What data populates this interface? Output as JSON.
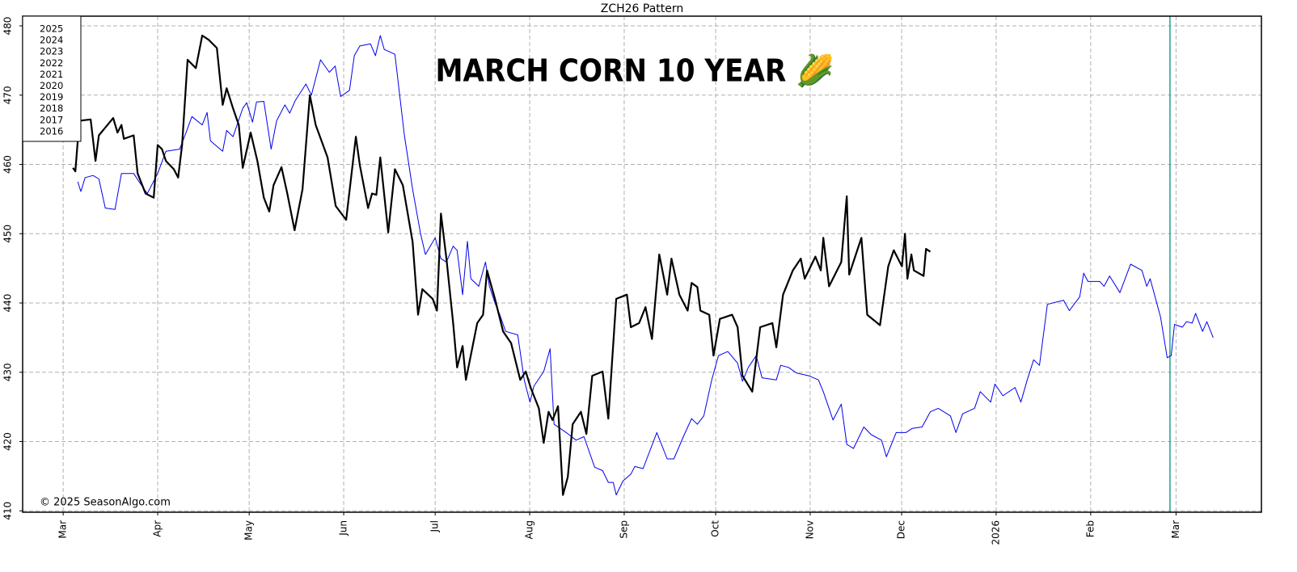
{
  "chart_data": {
    "type": "line",
    "title": "ZCH26  Pattern",
    "overlay_title": "MARCH CORN 10 YEAR 🌽",
    "copyright": "© 2025 SeasonAlgo.com",
    "legend": [
      "2025",
      "2024",
      "2023",
      "2022",
      "2021",
      "2020",
      "2019",
      "2018",
      "2017",
      "2016"
    ],
    "legend_color": "#0000cc",
    "grid": true,
    "xlim": [
      -13.3,
      393
    ],
    "ylim": [
      409.8,
      481.4
    ],
    "xticks": [
      {
        "value": 0,
        "label": "Mar"
      },
      {
        "value": 31,
        "label": "Apr"
      },
      {
        "value": 61,
        "label": "May"
      },
      {
        "value": 92,
        "label": "Jun"
      },
      {
        "value": 122,
        "label": "Jul"
      },
      {
        "value": 153,
        "label": "Aug"
      },
      {
        "value": 184,
        "label": "Sep"
      },
      {
        "value": 214,
        "label": "Oct"
      },
      {
        "value": 245,
        "label": "Nov"
      },
      {
        "value": 275,
        "label": "Dec"
      },
      {
        "value": 306,
        "label": "2026"
      },
      {
        "value": 337,
        "label": "Feb"
      },
      {
        "value": 365,
        "label": "Mar"
      }
    ],
    "yticks": [
      410,
      420,
      430,
      440,
      450,
      460,
      470,
      480
    ],
    "vline": {
      "value": 363,
      "color": "#1aa39a"
    },
    "series": [
      {
        "color": "#0000ee",
        "width": 1,
        "x": [
          4.8,
          5.8,
          7.2,
          9.8,
          11.7,
          13.8,
          17,
          19.1,
          23.1,
          24.9,
          27.6,
          31,
          33.7,
          38.2,
          40.3,
          42.2,
          45.6,
          47.2,
          48.3,
          52.3,
          53.6,
          55.7,
          58.9,
          60.2,
          62.1,
          63.4,
          65.8,
          68.2,
          70,
          72.7,
          74.3,
          76.1,
          79.6,
          81.4,
          84.4,
          87.3,
          89.2,
          91,
          93.9,
          95.5,
          97.3,
          100.8,
          102.4,
          104,
          105.3,
          108.8,
          111.9,
          114.6,
          117.2,
          118.8,
          120.4,
          122,
          123.9,
          125.7,
          127.9,
          129.2,
          131,
          132.6,
          133.7,
          136.3,
          138.5,
          139.8,
          141.6,
          143.2,
          145.1,
          149.1,
          151.2,
          153.1,
          154.4,
          157.6,
          159.7,
          161,
          165,
          168.2,
          170.8,
          174.3,
          176.9,
          178.8,
          180.4,
          181.4,
          183.6,
          186.2,
          187.5,
          190.2,
          194.7,
          198.1,
          200.3,
          203.4,
          206.1,
          208,
          210.1,
          212.7,
          214.9,
          218,
          221.2,
          222.8,
          224.7,
          227.3,
          229.2,
          233.9,
          235.3,
          237.9,
          240.5,
          244.5,
          247.7,
          249.3,
          252.5,
          255.2,
          257,
          259.2,
          262.6,
          265,
          268.4,
          270,
          273.2,
          276.4,
          278.5,
          281.7,
          284.4,
          287,
          291,
          292.8,
          295,
          298.9,
          300.8,
          304.2,
          305.6,
          308.2,
          312.2,
          314.1,
          316.2,
          318.3,
          320.2,
          322.8,
          328.1,
          330,
          333.4,
          334.7,
          336.1,
          340,
          341.4,
          343.2,
          346.6,
          350.1,
          353.8,
          355.4,
          356.5,
          359.9,
          362.1,
          363.4,
          364.5,
          367.1,
          368.4,
          370.3,
          371.4,
          373.7,
          375.1,
          377.2
        ],
        "values": [
          457.5,
          456.1,
          458.1,
          458.4,
          457.9,
          453.7,
          453.5,
          458.7,
          458.7,
          457.5,
          455.8,
          458.7,
          461.9,
          462.2,
          464.6,
          466.9,
          465.7,
          467.5,
          463.4,
          461.9,
          464.9,
          464,
          468.1,
          468.9,
          466.1,
          469,
          469.1,
          462.2,
          466.3,
          468.6,
          467.4,
          469.2,
          471.6,
          470,
          475.1,
          473.3,
          474.2,
          469.8,
          470.7,
          475.7,
          477.1,
          477.4,
          475.7,
          478.6,
          476.6,
          475.9,
          464.2,
          456.4,
          450,
          447,
          448.2,
          449.4,
          446.4,
          445.9,
          448.2,
          447.6,
          441.2,
          448.9,
          443.5,
          442.4,
          445.9,
          442.4,
          440,
          438.3,
          435.9,
          435.4,
          428.9,
          425.7,
          428,
          430.1,
          433.4,
          422.5,
          421.3,
          420.2,
          420.7,
          416.3,
          415.8,
          414.1,
          414.1,
          412.3,
          414.3,
          415.3,
          416.4,
          416.1,
          421.3,
          417.5,
          417.5,
          420.7,
          423.3,
          422.5,
          423.7,
          428.9,
          432.4,
          433,
          431.3,
          428.7,
          430.7,
          432.4,
          429.2,
          428.9,
          431,
          430.7,
          429.9,
          429.5,
          428.9,
          427.2,
          423.1,
          425.4,
          419.6,
          419,
          422.1,
          421,
          420.2,
          417.8,
          421.3,
          421.3,
          421.9,
          422.1,
          424.3,
          424.8,
          423.7,
          421.3,
          424,
          424.8,
          427.2,
          425.7,
          428.3,
          426.6,
          427.8,
          425.7,
          428.9,
          431.8,
          431,
          439.8,
          440.4,
          438.9,
          440.9,
          444.3,
          443.1,
          443.1,
          442.4,
          443.9,
          441.5,
          445.6,
          444.7,
          442.4,
          443.5,
          438,
          432.1,
          432.4,
          436.9,
          436.5,
          437.3,
          437.1,
          438.5,
          435.9,
          437.3,
          435
        ]
      },
      {
        "color": "#000000",
        "width": 2.2,
        "x": [
          3.2,
          4,
          5.3,
          9,
          10.6,
          11.7,
          16.4,
          17.8,
          19.1,
          19.9,
          23.1,
          24.4,
          27,
          29.7,
          31,
          32.4,
          33.7,
          36.3,
          37.7,
          39,
          40.8,
          43.5,
          45.6,
          47.7,
          50.4,
          52.3,
          53.6,
          55.7,
          57.6,
          58.9,
          61.5,
          63.7,
          65.8,
          67.6,
          69,
          71.6,
          73.5,
          75.9,
          78.5,
          80.9,
          82.8,
          86.7,
          89.4,
          92.8,
          96,
          97.3,
          100,
          101.3,
          102.7,
          104,
          106.6,
          108.8,
          111.4,
          114.6,
          116.4,
          117.8,
          121.2,
          122.6,
          123.9,
          125.7,
          127.9,
          129.2,
          131,
          132.1,
          135.8,
          137.7,
          139,
          141.6,
          144.3,
          146.9,
          149.9,
          151.7,
          153.3,
          156,
          157.6,
          159.2,
          160.5,
          162.3,
          163.9,
          165.5,
          167.1,
          169.8,
          171.6,
          173.5,
          176.9,
          178.8,
          181.4,
          184.9,
          186.2,
          188.9,
          191,
          193.1,
          195.5,
          198.1,
          199.5,
          202.1,
          204.8,
          206.1,
          208,
          209,
          211.9,
          213.3,
          215.4,
          219.4,
          221.2,
          222.8,
          226,
          228.6,
          232.6,
          233.9,
          236.1,
          239.3,
          241.9,
          243.2,
          246.7,
          248.5,
          249.3,
          251.2,
          255.2,
          257,
          257.8,
          261.8,
          263.7,
          267.9,
          270.6,
          272.4,
          275.1,
          276.1,
          276.9,
          278.2,
          279,
          282.2,
          283,
          284.4
        ],
        "values": [
          459.5,
          459,
          466.3,
          466.5,
          460.5,
          464.2,
          466.7,
          464.6,
          465.7,
          463.7,
          464.2,
          458.7,
          455.8,
          455.2,
          462.8,
          462.2,
          460.5,
          459.3,
          458.1,
          462.8,
          475.1,
          473.9,
          478.6,
          478,
          476.8,
          468.6,
          471,
          468.1,
          465.7,
          459.5,
          464.6,
          460.5,
          455.2,
          453.2,
          457,
          459.6,
          455.8,
          450.5,
          456.4,
          470,
          465.7,
          461,
          454,
          452,
          464,
          459.9,
          453.7,
          455.8,
          455.6,
          461,
          450.2,
          459.3,
          457,
          448.8,
          438.3,
          442,
          440.6,
          438.9,
          452.9,
          446.4,
          437.1,
          430.7,
          433.8,
          428.9,
          437.1,
          438.3,
          444.7,
          440.6,
          435.9,
          434.2,
          428.9,
          430.1,
          427.8,
          424.8,
          419.8,
          424.3,
          423.1,
          425.1,
          412.3,
          414.9,
          422.5,
          424.3,
          421.1,
          429.5,
          430.1,
          423.3,
          440.6,
          441.2,
          436.5,
          437.1,
          439.4,
          434.8,
          447,
          441.2,
          446.4,
          441.2,
          438.9,
          442.9,
          442.3,
          438.9,
          438.3,
          432.4,
          437.7,
          438.3,
          436.5,
          429.5,
          427.2,
          436.5,
          437.1,
          433.6,
          441.2,
          444.7,
          446.4,
          443.5,
          446.7,
          444.7,
          449.4,
          442.4,
          445.9,
          455.4,
          444.1,
          449.4,
          438.3,
          436.8,
          445.3,
          447.6,
          445.3,
          450,
          443.5,
          447,
          444.7,
          443.9,
          447.8,
          447.4
        ]
      }
    ]
  }
}
